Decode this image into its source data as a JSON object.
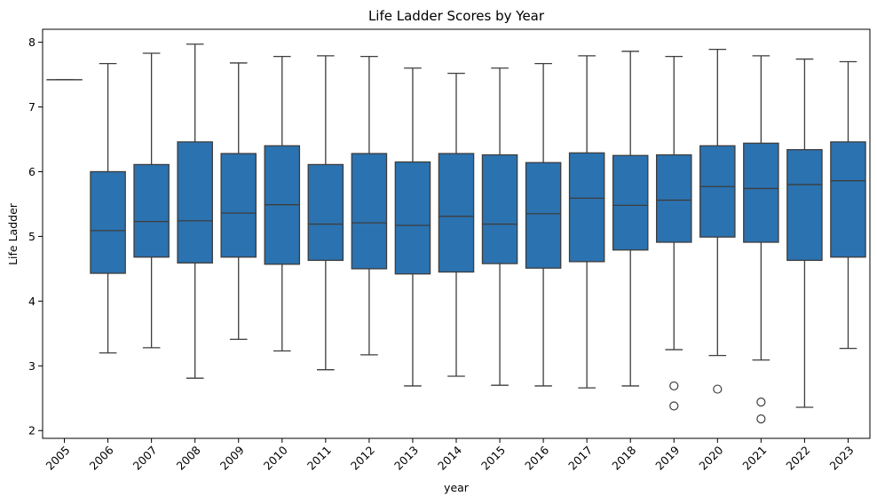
{
  "chart_data": {
    "type": "box",
    "title": "Life Ladder Scores by Year",
    "xlabel": "year",
    "ylabel": "Life Ladder",
    "ylim": [
      1.88,
      8.2
    ],
    "yticks": [
      2,
      3,
      4,
      5,
      6,
      7,
      8
    ],
    "box_color": "#2b72b0",
    "line_color": "#3d3d3d",
    "categories": [
      "2005",
      "2006",
      "2007",
      "2008",
      "2009",
      "2010",
      "2011",
      "2012",
      "2013",
      "2014",
      "2015",
      "2016",
      "2017",
      "2018",
      "2019",
      "2020",
      "2021",
      "2022",
      "2023"
    ],
    "boxes": [
      {
        "year": "2005",
        "whisker_low": 7.42,
        "q1": 7.42,
        "median": 7.42,
        "q3": 7.42,
        "whisker_high": 7.42,
        "outliers": []
      },
      {
        "year": "2006",
        "whisker_low": 3.2,
        "q1": 4.43,
        "median": 5.09,
        "q3": 6.0,
        "whisker_high": 7.67,
        "outliers": []
      },
      {
        "year": "2007",
        "whisker_low": 3.28,
        "q1": 4.68,
        "median": 5.23,
        "q3": 6.11,
        "whisker_high": 7.83,
        "outliers": []
      },
      {
        "year": "2008",
        "whisker_low": 2.81,
        "q1": 4.59,
        "median": 5.24,
        "q3": 6.46,
        "whisker_high": 7.97,
        "outliers": []
      },
      {
        "year": "2009",
        "whisker_low": 3.41,
        "q1": 4.68,
        "median": 5.36,
        "q3": 6.28,
        "whisker_high": 7.68,
        "outliers": []
      },
      {
        "year": "2010",
        "whisker_low": 3.23,
        "q1": 4.57,
        "median": 5.49,
        "q3": 6.4,
        "whisker_high": 7.78,
        "outliers": []
      },
      {
        "year": "2011",
        "whisker_low": 2.94,
        "q1": 4.63,
        "median": 5.19,
        "q3": 6.11,
        "whisker_high": 7.79,
        "outliers": []
      },
      {
        "year": "2012",
        "whisker_low": 3.17,
        "q1": 4.5,
        "median": 5.21,
        "q3": 6.28,
        "whisker_high": 7.78,
        "outliers": []
      },
      {
        "year": "2013",
        "whisker_low": 2.69,
        "q1": 4.42,
        "median": 5.17,
        "q3": 6.15,
        "whisker_high": 7.6,
        "outliers": []
      },
      {
        "year": "2014",
        "whisker_low": 2.84,
        "q1": 4.45,
        "median": 5.31,
        "q3": 6.28,
        "whisker_high": 7.52,
        "outliers": []
      },
      {
        "year": "2015",
        "whisker_low": 2.7,
        "q1": 4.58,
        "median": 5.19,
        "q3": 6.26,
        "whisker_high": 7.6,
        "outliers": []
      },
      {
        "year": "2016",
        "whisker_low": 2.69,
        "q1": 4.51,
        "median": 5.35,
        "q3": 6.14,
        "whisker_high": 7.67,
        "outliers": []
      },
      {
        "year": "2017",
        "whisker_low": 2.66,
        "q1": 4.61,
        "median": 5.59,
        "q3": 6.29,
        "whisker_high": 7.79,
        "outliers": []
      },
      {
        "year": "2018",
        "whisker_low": 2.69,
        "q1": 4.79,
        "median": 5.48,
        "q3": 6.25,
        "whisker_high": 7.86,
        "outliers": []
      },
      {
        "year": "2019",
        "whisker_low": 3.25,
        "q1": 4.91,
        "median": 5.56,
        "q3": 6.26,
        "whisker_high": 7.78,
        "outliers": [
          2.69,
          2.38
        ]
      },
      {
        "year": "2020",
        "whisker_low": 3.16,
        "q1": 4.99,
        "median": 5.77,
        "q3": 6.4,
        "whisker_high": 7.89,
        "outliers": [
          2.64
        ]
      },
      {
        "year": "2021",
        "whisker_low": 3.09,
        "q1": 4.91,
        "median": 5.74,
        "q3": 6.44,
        "whisker_high": 7.79,
        "outliers": [
          2.44,
          2.18
        ]
      },
      {
        "year": "2022",
        "whisker_low": 2.36,
        "q1": 4.63,
        "median": 5.8,
        "q3": 6.34,
        "whisker_high": 7.74,
        "outliers": []
      },
      {
        "year": "2023",
        "whisker_low": 3.27,
        "q1": 4.68,
        "median": 5.86,
        "q3": 6.46,
        "whisker_high": 7.7,
        "outliers": []
      }
    ]
  }
}
